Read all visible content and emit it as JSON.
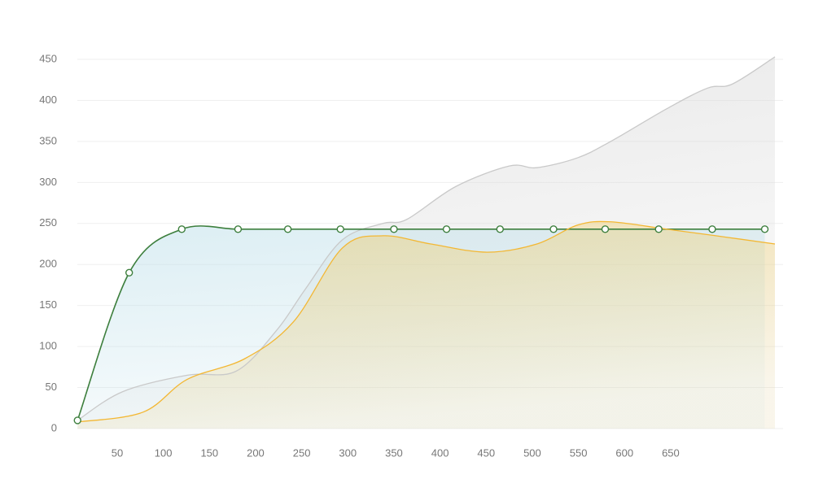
{
  "chart_data": {
    "type": "area",
    "xlim": [
      0,
      763
    ],
    "xticks": [
      50,
      100,
      150,
      200,
      250,
      300,
      350,
      400,
      450,
      500,
      550,
      600,
      650
    ],
    "ylim": [
      0,
      450
    ],
    "yticks": [
      0,
      50,
      100,
      150,
      200,
      250,
      300,
      350,
      400,
      450
    ],
    "grid": true,
    "series": [
      {
        "color": "#c9c9c9",
        "markers": false,
        "x": [
          7,
          56,
          126,
          179,
          223,
          254,
          294,
          338,
          364,
          417,
          475,
          505,
          549,
          585,
          646,
          690,
          717,
          763
        ],
        "values": [
          10,
          45,
          65,
          70,
          120,
          170,
          230,
          250,
          255,
          295,
          320,
          318,
          330,
          350,
          390,
          415,
          420,
          453
        ]
      },
      {
        "color": "#3d7f3d",
        "markers": true,
        "x": [
          7,
          63,
          120,
          181,
          235,
          292,
          350,
          407,
          465,
          523,
          579,
          637,
          695,
          752
        ],
        "values": [
          10,
          190,
          243,
          243,
          243,
          243,
          243,
          243,
          243,
          243,
          243,
          243,
          243,
          243
        ]
      },
      {
        "color": "#f3b733",
        "markers": false,
        "x": [
          7,
          78,
          126,
          188,
          241,
          294,
          338,
          390,
          451,
          505,
          549,
          585,
          646,
          699,
          763
        ],
        "values": [
          8,
          20,
          60,
          85,
          130,
          220,
          235,
          225,
          215,
          225,
          248,
          252,
          243,
          235,
          225
        ]
      }
    ]
  }
}
